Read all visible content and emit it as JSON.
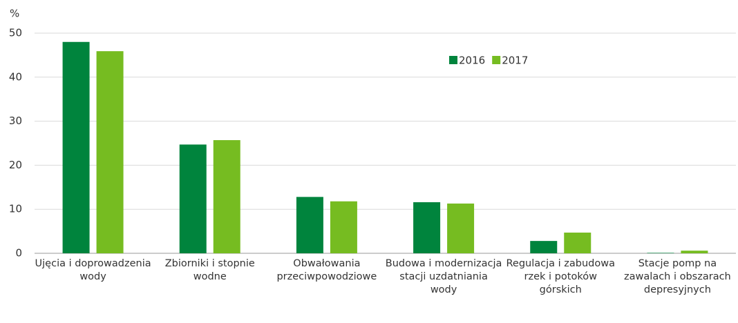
{
  "chart_data": {
    "type": "bar",
    "y_label": "%",
    "categories": [
      "Ujęcia i doprowadzenia wody",
      "Zbiorniki i stopnie wodne",
      "Obwałowania przeciwpowodziowe",
      "Budowa i modernizacja stacji uzdatniania wody",
      "Regulacja i zabudowa rzek i potoków górskich",
      "Stacje pomp na zawalach i obszarach depresyjnych"
    ],
    "series": [
      {
        "name": "2016",
        "color": "#00843d",
        "values": [
          48,
          24.7,
          12.8,
          11.6,
          2.8,
          0.1
        ]
      },
      {
        "name": "2017",
        "color": "#76bc21",
        "values": [
          45.9,
          25.7,
          11.8,
          11.3,
          4.7,
          0.6
        ]
      }
    ],
    "ylim": [
      0,
      50
    ],
    "yticks": [
      0,
      10,
      20,
      30,
      40,
      50
    ],
    "grid": true,
    "legend": "top-right"
  }
}
